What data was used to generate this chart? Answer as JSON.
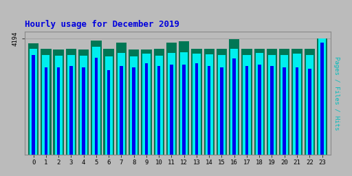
{
  "title": "Hourly usage for December 2019",
  "title_color": "#0000dd",
  "title_fontsize": 9,
  "hours": [
    0,
    1,
    2,
    3,
    4,
    5,
    6,
    7,
    8,
    9,
    10,
    11,
    12,
    13,
    14,
    15,
    16,
    17,
    18,
    19,
    20,
    21,
    22,
    23
  ],
  "pages": [
    3600,
    3150,
    3150,
    3200,
    3150,
    3500,
    3050,
    3200,
    3150,
    3300,
    3200,
    3250,
    3250,
    3300,
    3200,
    3150,
    3480,
    3200,
    3250,
    3200,
    3150,
    3150,
    3100,
    4050
  ],
  "files": [
    3820,
    3600,
    3580,
    3620,
    3580,
    3900,
    3550,
    3680,
    3550,
    3650,
    3580,
    3680,
    3700,
    3660,
    3640,
    3600,
    3820,
    3620,
    3680,
    3600,
    3600,
    3660,
    3600,
    4194
  ],
  "hits": [
    4030,
    3820,
    3800,
    3820,
    3800,
    4130,
    3820,
    4060,
    3800,
    3800,
    3820,
    4060,
    4100,
    3840,
    3840,
    3820,
    4170,
    3840,
    3840,
    3820,
    3820,
    3820,
    3820,
    4194
  ],
  "pages_color": "#0000ee",
  "files_color": "#00eeee",
  "hits_color": "#007755",
  "bg_color": "#bbbbbb",
  "plot_bg_color": "#bbbbbb",
  "ylabel_right": "Pages / Files / Hits",
  "ylabel_right_color": "#00bbbb",
  "ytick_label": "4194",
  "ylim_max": 4450,
  "bar_width": 0.28
}
